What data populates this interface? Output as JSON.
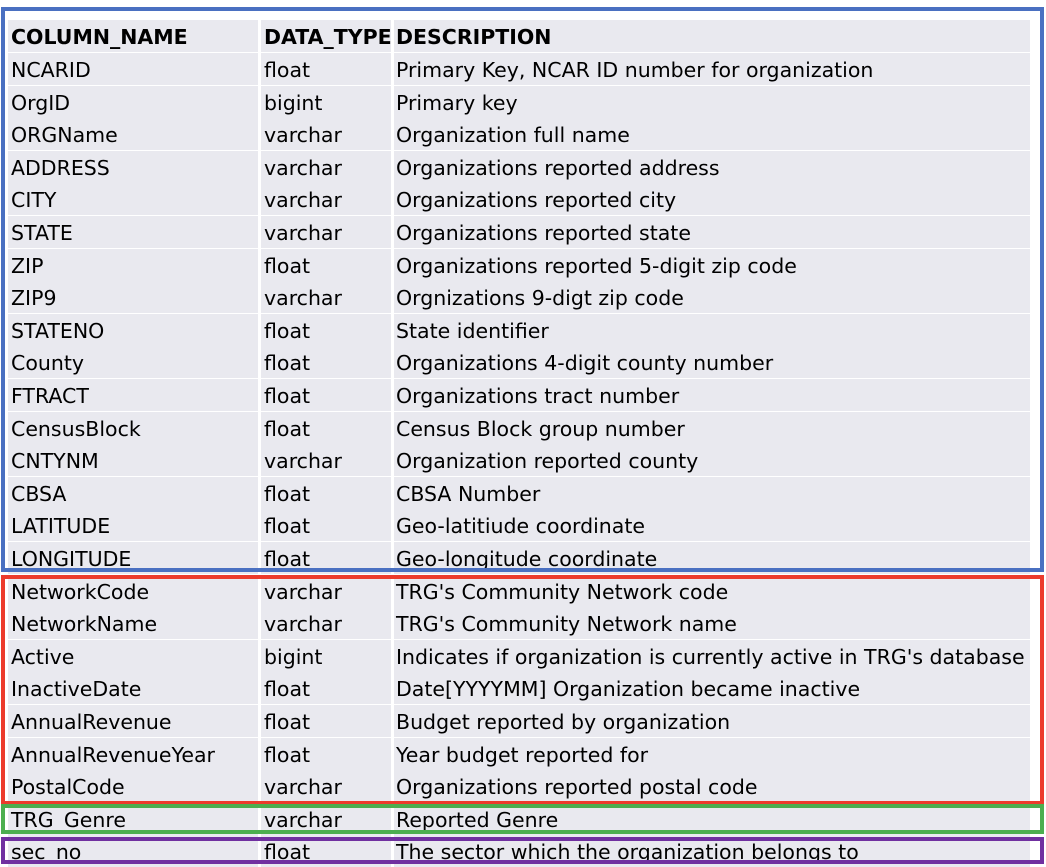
{
  "table": {
    "headers": [
      "COLUMN_NAME",
      "DATA_TYPE",
      "DESCRIPTION"
    ],
    "rows": [
      [
        "NCARID",
        "float",
        "Primary Key, NCAR ID number for organization"
      ],
      [
        "OrgID",
        "bigint",
        "Primary key"
      ],
      [
        "ORGName",
        "varchar",
        "Organization full name"
      ],
      [
        "ADDRESS",
        "varchar",
        "Organizations reported address"
      ],
      [
        "CITY",
        "varchar",
        "Organizations reported city"
      ],
      [
        "STATE",
        "varchar",
        "Organizations reported state"
      ],
      [
        "ZIP",
        "float",
        "Organizations reported 5-digit zip code"
      ],
      [
        "ZIP9",
        "varchar",
        "Orgnizations 9-digt zip code"
      ],
      [
        "STATENO",
        "float",
        "State identifier"
      ],
      [
        "County",
        "float",
        "Organizations 4-digit county number"
      ],
      [
        "FTRACT",
        "float",
        "Organizations tract number"
      ],
      [
        "CensusBlock",
        "float",
        "Census Block group number"
      ],
      [
        "CNTYNM",
        "varchar",
        "Organization reported county"
      ],
      [
        "CBSA",
        "float",
        "CBSA Number"
      ],
      [
        "LATITUDE",
        "float",
        "Geo-latitiude coordinate"
      ],
      [
        "LONGITUDE",
        "float",
        "Geo-longitude coordinate"
      ],
      [
        "NetworkCode",
        "varchar",
        "TRG's Community Network code"
      ],
      [
        "NetworkName",
        "varchar",
        "TRG's Community Network name"
      ],
      [
        "Active",
        "bigint",
        "Indicates if organization is currently active in TRG's database"
      ],
      [
        "InactiveDate",
        "float",
        "Date[YYYYMM] Organization became inactive"
      ],
      [
        "AnnualRevenue",
        "float",
        "Budget reported by organization"
      ],
      [
        "AnnualRevenueYear",
        "float",
        "Year budget reported for"
      ],
      [
        "PostalCode",
        "varchar",
        "Organizations reported postal code"
      ],
      [
        "TRG_Genre",
        "varchar",
        "Reported Genre"
      ],
      [
        "sec_no",
        "float",
        "The sector which the organization belongs to"
      ]
    ]
  },
  "groups": [
    {
      "color": "#4a70c1"
    },
    {
      "color": "#ec3b2c"
    },
    {
      "color": "#4cae4f"
    },
    {
      "color": "#7030a0"
    }
  ]
}
